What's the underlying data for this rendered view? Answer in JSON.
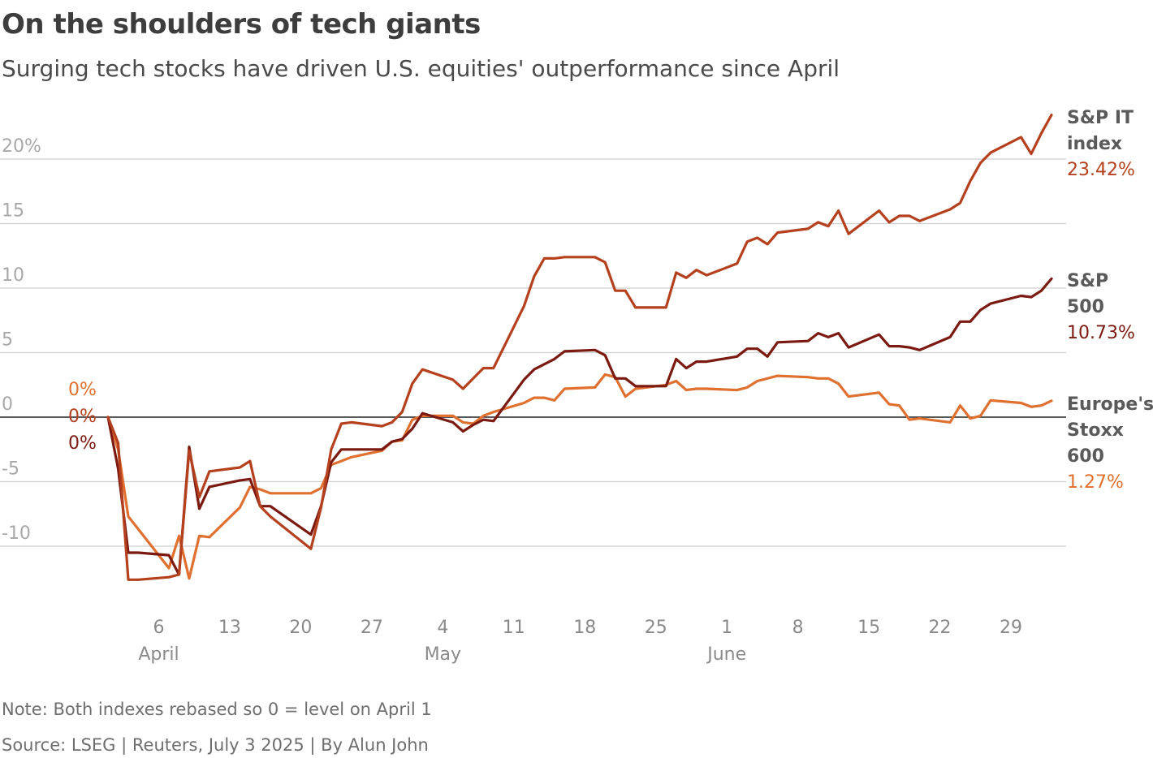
{
  "title": "On the shoulders of tech giants",
  "subtitle": "Surging tech stocks have driven U.S. equities' outperformance since April",
  "note": "Note: Both indexes rebased so 0 = level on April 1",
  "source": "Source: LSEG | Reuters, July 3 2025 | By Alun John",
  "chart_data": {
    "type": "line",
    "x_unit": "date (2025)",
    "ylim": [
      -15.5,
      24
    ],
    "y_ticks": [
      {
        "value": 20,
        "label": "20%"
      },
      {
        "value": 15,
        "label": "15"
      },
      {
        "value": 10,
        "label": "10"
      },
      {
        "value": 5,
        "label": "5"
      },
      {
        "value": 0,
        "label": "0"
      },
      {
        "value": -5,
        "label": "-5"
      },
      {
        "value": -10,
        "label": "-10"
      }
    ],
    "x_ticks": [
      {
        "date": "2025-04-06",
        "label": "6"
      },
      {
        "date": "2025-04-13",
        "label": "13"
      },
      {
        "date": "2025-04-20",
        "label": "20"
      },
      {
        "date": "2025-04-27",
        "label": "27"
      },
      {
        "date": "2025-05-04",
        "label": "4"
      },
      {
        "date": "2025-05-11",
        "label": "11"
      },
      {
        "date": "2025-05-18",
        "label": "18"
      },
      {
        "date": "2025-05-25",
        "label": "25"
      },
      {
        "date": "2025-06-01",
        "label": "1"
      },
      {
        "date": "2025-06-08",
        "label": "8"
      },
      {
        "date": "2025-06-15",
        "label": "15"
      },
      {
        "date": "2025-06-22",
        "label": "22"
      },
      {
        "date": "2025-06-29",
        "label": "29"
      }
    ],
    "month_labels": [
      {
        "date": "2025-04-06",
        "label": "April"
      },
      {
        "date": "2025-05-04",
        "label": "May"
      },
      {
        "date": "2025-06-01",
        "label": "June"
      }
    ],
    "start_labels": [
      "0%",
      "0%",
      "0%"
    ],
    "grid": true,
    "series": [
      {
        "name_lines": [
          "S&P IT",
          "index"
        ],
        "end_label": "23.42%",
        "color": "#b5401e",
        "points": [
          [
            "2025-04-01",
            0
          ],
          [
            "2025-04-02",
            -2.0
          ],
          [
            "2025-04-03",
            -12.6
          ],
          [
            "2025-04-04",
            -12.6
          ],
          [
            "2025-04-07",
            -12.4
          ],
          [
            "2025-04-08",
            -12.2
          ],
          [
            "2025-04-09",
            -2.6
          ],
          [
            "2025-04-10",
            -6.2
          ],
          [
            "2025-04-11",
            -4.2
          ],
          [
            "2025-04-14",
            -3.9
          ],
          [
            "2025-04-15",
            -3.4
          ],
          [
            "2025-04-16",
            -6.9
          ],
          [
            "2025-04-17",
            -7.7
          ],
          [
            "2025-04-21",
            -10.2
          ],
          [
            "2025-04-22",
            -7.0
          ],
          [
            "2025-04-23",
            -2.5
          ],
          [
            "2025-04-24",
            -0.5
          ],
          [
            "2025-04-25",
            -0.4
          ],
          [
            "2025-04-28",
            -0.7
          ],
          [
            "2025-04-29",
            -0.4
          ],
          [
            "2025-04-30",
            0.4
          ],
          [
            "2025-05-01",
            2.6
          ],
          [
            "2025-05-02",
            3.7
          ],
          [
            "2025-05-05",
            2.9
          ],
          [
            "2025-05-06",
            2.2
          ],
          [
            "2025-05-07",
            3.0
          ],
          [
            "2025-05-08",
            3.8
          ],
          [
            "2025-05-09",
            3.8
          ],
          [
            "2025-05-12",
            8.6
          ],
          [
            "2025-05-13",
            10.9
          ],
          [
            "2025-05-14",
            12.3
          ],
          [
            "2025-05-15",
            12.3
          ],
          [
            "2025-05-16",
            12.4
          ],
          [
            "2025-05-19",
            12.4
          ],
          [
            "2025-05-20",
            12.0
          ],
          [
            "2025-05-21",
            9.8
          ],
          [
            "2025-05-22",
            9.8
          ],
          [
            "2025-05-23",
            8.5
          ],
          [
            "2025-05-26",
            8.5
          ],
          [
            "2025-05-27",
            11.2
          ],
          [
            "2025-05-28",
            10.8
          ],
          [
            "2025-05-29",
            11.4
          ],
          [
            "2025-05-30",
            11.0
          ],
          [
            "2025-06-02",
            11.9
          ],
          [
            "2025-06-03",
            13.6
          ],
          [
            "2025-06-04",
            13.9
          ],
          [
            "2025-06-05",
            13.4
          ],
          [
            "2025-06-06",
            14.3
          ],
          [
            "2025-06-09",
            14.6
          ],
          [
            "2025-06-10",
            15.1
          ],
          [
            "2025-06-11",
            14.8
          ],
          [
            "2025-06-12",
            16.0
          ],
          [
            "2025-06-13",
            14.2
          ],
          [
            "2025-06-16",
            16.0
          ],
          [
            "2025-06-17",
            15.1
          ],
          [
            "2025-06-18",
            15.6
          ],
          [
            "2025-06-19",
            15.6
          ],
          [
            "2025-06-20",
            15.2
          ],
          [
            "2025-06-23",
            16.1
          ],
          [
            "2025-06-24",
            16.6
          ],
          [
            "2025-06-25",
            18.3
          ],
          [
            "2025-06-26",
            19.7
          ],
          [
            "2025-06-27",
            20.5
          ],
          [
            "2025-06-30",
            21.7
          ],
          [
            "2025-07-01",
            20.4
          ],
          [
            "2025-07-02",
            22.0
          ],
          [
            "2025-07-03",
            23.42
          ]
        ]
      },
      {
        "name_lines": [
          "S&P",
          "500"
        ],
        "end_label": "10.73%",
        "color": "#7a1a10",
        "points": [
          [
            "2025-04-01",
            0
          ],
          [
            "2025-04-02",
            -4.0
          ],
          [
            "2025-04-03",
            -10.5
          ],
          [
            "2025-04-04",
            -10.5
          ],
          [
            "2025-04-07",
            -10.7
          ],
          [
            "2025-04-08",
            -12.2
          ],
          [
            "2025-04-09",
            -2.3
          ],
          [
            "2025-04-10",
            -7.1
          ],
          [
            "2025-04-11",
            -5.4
          ],
          [
            "2025-04-14",
            -4.9
          ],
          [
            "2025-04-15",
            -4.8
          ],
          [
            "2025-04-16",
            -6.9
          ],
          [
            "2025-04-17",
            -6.9
          ],
          [
            "2025-04-21",
            -9.1
          ],
          [
            "2025-04-22",
            -6.9
          ],
          [
            "2025-04-23",
            -3.5
          ],
          [
            "2025-04-24",
            -2.5
          ],
          [
            "2025-04-25",
            -2.5
          ],
          [
            "2025-04-28",
            -2.5
          ],
          [
            "2025-04-29",
            -1.9
          ],
          [
            "2025-04-30",
            -1.7
          ],
          [
            "2025-05-01",
            -0.9
          ],
          [
            "2025-05-02",
            0.3
          ],
          [
            "2025-05-05",
            -0.4
          ],
          [
            "2025-05-06",
            -1.1
          ],
          [
            "2025-05-07",
            -0.6
          ],
          [
            "2025-05-08",
            -0.2
          ],
          [
            "2025-05-09",
            -0.3
          ],
          [
            "2025-05-12",
            2.9
          ],
          [
            "2025-05-13",
            3.7
          ],
          [
            "2025-05-14",
            4.1
          ],
          [
            "2025-05-15",
            4.5
          ],
          [
            "2025-05-16",
            5.1
          ],
          [
            "2025-05-19",
            5.2
          ],
          [
            "2025-05-20",
            4.8
          ],
          [
            "2025-05-21",
            3.0
          ],
          [
            "2025-05-22",
            3.0
          ],
          [
            "2025-05-23",
            2.4
          ],
          [
            "2025-05-26",
            2.4
          ],
          [
            "2025-05-27",
            4.5
          ],
          [
            "2025-05-28",
            3.8
          ],
          [
            "2025-05-29",
            4.3
          ],
          [
            "2025-05-30",
            4.3
          ],
          [
            "2025-06-02",
            4.7
          ],
          [
            "2025-06-03",
            5.3
          ],
          [
            "2025-06-04",
            5.3
          ],
          [
            "2025-06-05",
            4.7
          ],
          [
            "2025-06-06",
            5.8
          ],
          [
            "2025-06-09",
            5.9
          ],
          [
            "2025-06-10",
            6.5
          ],
          [
            "2025-06-11",
            6.2
          ],
          [
            "2025-06-12",
            6.5
          ],
          [
            "2025-06-13",
            5.4
          ],
          [
            "2025-06-16",
            6.4
          ],
          [
            "2025-06-17",
            5.5
          ],
          [
            "2025-06-18",
            5.5
          ],
          [
            "2025-06-19",
            5.4
          ],
          [
            "2025-06-20",
            5.2
          ],
          [
            "2025-06-23",
            6.2
          ],
          [
            "2025-06-24",
            7.4
          ],
          [
            "2025-06-25",
            7.4
          ],
          [
            "2025-06-26",
            8.3
          ],
          [
            "2025-06-27",
            8.8
          ],
          [
            "2025-06-30",
            9.4
          ],
          [
            "2025-07-01",
            9.3
          ],
          [
            "2025-07-02",
            9.8
          ],
          [
            "2025-07-03",
            10.73
          ]
        ]
      },
      {
        "name_lines": [
          "Europe's",
          "Stoxx",
          "600"
        ],
        "end_label": "1.27%",
        "color": "#e07030",
        "points": [
          [
            "2025-04-01",
            0
          ],
          [
            "2025-04-02",
            -2.5
          ],
          [
            "2025-04-03",
            -7.7
          ],
          [
            "2025-04-07",
            -11.7
          ],
          [
            "2025-04-08",
            -9.2
          ],
          [
            "2025-04-09",
            -12.5
          ],
          [
            "2025-04-10",
            -9.2
          ],
          [
            "2025-04-11",
            -9.3
          ],
          [
            "2025-04-14",
            -7.0
          ],
          [
            "2025-04-15",
            -5.4
          ],
          [
            "2025-04-16",
            -5.6
          ],
          [
            "2025-04-17",
            -5.9
          ],
          [
            "2025-04-18",
            -5.9
          ],
          [
            "2025-04-21",
            -5.9
          ],
          [
            "2025-04-22",
            -5.5
          ],
          [
            "2025-04-23",
            -3.7
          ],
          [
            "2025-04-24",
            -3.4
          ],
          [
            "2025-04-25",
            -3.1
          ],
          [
            "2025-04-28",
            -2.6
          ],
          [
            "2025-04-29",
            -1.9
          ],
          [
            "2025-04-30",
            -1.8
          ],
          [
            "2025-05-01",
            -0.2
          ],
          [
            "2025-05-02",
            0.1
          ],
          [
            "2025-05-05",
            0.1
          ],
          [
            "2025-05-06",
            -0.4
          ],
          [
            "2025-05-07",
            -0.5
          ],
          [
            "2025-05-08",
            0.1
          ],
          [
            "2025-05-09",
            0.4
          ],
          [
            "2025-05-12",
            1.1
          ],
          [
            "2025-05-13",
            1.5
          ],
          [
            "2025-05-14",
            1.5
          ],
          [
            "2025-05-15",
            1.3
          ],
          [
            "2025-05-16",
            2.2
          ],
          [
            "2025-05-19",
            2.3
          ],
          [
            "2025-05-20",
            3.3
          ],
          [
            "2025-05-21",
            3.1
          ],
          [
            "2025-05-22",
            1.6
          ],
          [
            "2025-05-23",
            2.2
          ],
          [
            "2025-05-26",
            2.5
          ],
          [
            "2025-05-27",
            2.8
          ],
          [
            "2025-05-28",
            2.1
          ],
          [
            "2025-05-29",
            2.2
          ],
          [
            "2025-05-30",
            2.2
          ],
          [
            "2025-06-02",
            2.1
          ],
          [
            "2025-06-03",
            2.3
          ],
          [
            "2025-06-04",
            2.8
          ],
          [
            "2025-06-05",
            3.0
          ],
          [
            "2025-06-06",
            3.2
          ],
          [
            "2025-06-09",
            3.1
          ],
          [
            "2025-06-10",
            3.0
          ],
          [
            "2025-06-11",
            3.0
          ],
          [
            "2025-06-12",
            2.6
          ],
          [
            "2025-06-13",
            1.6
          ],
          [
            "2025-06-16",
            1.9
          ],
          [
            "2025-06-17",
            1.0
          ],
          [
            "2025-06-18",
            0.9
          ],
          [
            "2025-06-19",
            -0.2
          ],
          [
            "2025-06-20",
            -0.1
          ],
          [
            "2025-06-23",
            -0.4
          ],
          [
            "2025-06-24",
            0.9
          ],
          [
            "2025-06-25",
            -0.1
          ],
          [
            "2025-06-26",
            0.1
          ],
          [
            "2025-06-27",
            1.3
          ],
          [
            "2025-06-30",
            1.1
          ],
          [
            "2025-07-01",
            0.8
          ],
          [
            "2025-07-02",
            0.9
          ],
          [
            "2025-07-03",
            1.27
          ]
        ]
      }
    ]
  }
}
